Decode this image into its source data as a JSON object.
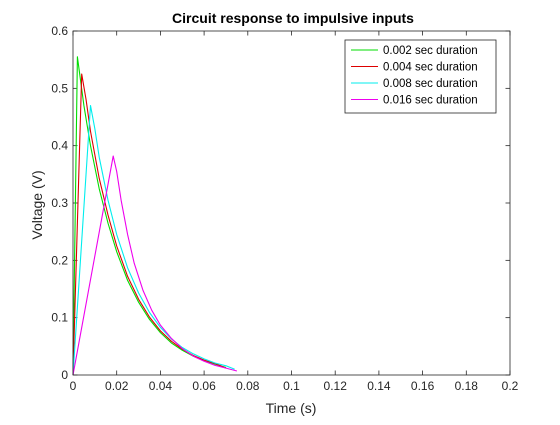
{
  "chart_data": {
    "type": "line",
    "title": "Circuit response to impulsive inputs",
    "xlabel": "Time (s)",
    "ylabel": "Voltage (V)",
    "xlim": [
      0,
      0.2
    ],
    "ylim": [
      0,
      0.6
    ],
    "xticks": [
      0,
      0.02,
      0.04,
      0.06,
      0.08,
      0.1,
      0.12,
      0.14,
      0.16,
      0.18,
      0.2
    ],
    "xtick_labels": [
      "0",
      "0.02",
      "0.04",
      "0.06",
      "0.08",
      "0.1",
      "0.12",
      "0.14",
      "0.16",
      "0.18",
      "0.2"
    ],
    "yticks": [
      0,
      0.1,
      0.2,
      0.3,
      0.4,
      0.5,
      0.6
    ],
    "ytick_labels": [
      "0",
      "0.1",
      "0.2",
      "0.3",
      "0.4",
      "0.5",
      "0.6"
    ],
    "grid": false,
    "legend_position": "top-right",
    "series": [
      {
        "name": "0.002 sec duration",
        "color": "#00dd00",
        "points": [
          [
            0,
            0
          ],
          [
            0.002,
            0.555
          ],
          [
            0.005,
            0.47
          ],
          [
            0.008,
            0.4
          ],
          [
            0.012,
            0.325
          ],
          [
            0.016,
            0.265
          ],
          [
            0.02,
            0.215
          ],
          [
            0.025,
            0.165
          ],
          [
            0.03,
            0.127
          ],
          [
            0.035,
            0.097
          ],
          [
            0.04,
            0.074
          ],
          [
            0.045,
            0.056
          ],
          [
            0.05,
            0.043
          ],
          [
            0.055,
            0.033
          ],
          [
            0.06,
            0.025
          ],
          [
            0.065,
            0.019
          ],
          [
            0.07,
            0.013
          ]
        ]
      },
      {
        "name": "0.004 sec duration",
        "color": "#dd0000",
        "points": [
          [
            0,
            0
          ],
          [
            0.004,
            0.525
          ],
          [
            0.006,
            0.48
          ],
          [
            0.008,
            0.425
          ],
          [
            0.012,
            0.343
          ],
          [
            0.016,
            0.279
          ],
          [
            0.02,
            0.225
          ],
          [
            0.025,
            0.172
          ],
          [
            0.03,
            0.132
          ],
          [
            0.035,
            0.101
          ],
          [
            0.04,
            0.077
          ],
          [
            0.045,
            0.059
          ],
          [
            0.05,
            0.045
          ],
          [
            0.055,
            0.034
          ],
          [
            0.06,
            0.026
          ],
          [
            0.065,
            0.02
          ],
          [
            0.07,
            0.012
          ]
        ]
      },
      {
        "name": "0.008 sec duration",
        "color": "#00eeee",
        "points": [
          [
            0,
            0
          ],
          [
            0.008,
            0.47
          ],
          [
            0.01,
            0.43
          ],
          [
            0.012,
            0.38
          ],
          [
            0.016,
            0.305
          ],
          [
            0.02,
            0.245
          ],
          [
            0.025,
            0.187
          ],
          [
            0.03,
            0.143
          ],
          [
            0.035,
            0.109
          ],
          [
            0.04,
            0.083
          ],
          [
            0.045,
            0.063
          ],
          [
            0.05,
            0.048
          ],
          [
            0.055,
            0.037
          ],
          [
            0.06,
            0.028
          ],
          [
            0.065,
            0.021
          ],
          [
            0.07,
            0.016
          ],
          [
            0.074,
            0.01
          ]
        ]
      },
      {
        "name": "0.016 sec duration",
        "color": "#ee00ee",
        "points": [
          [
            0,
            0
          ],
          [
            0.0184,
            0.382
          ],
          [
            0.02,
            0.355
          ],
          [
            0.022,
            0.305
          ],
          [
            0.025,
            0.245
          ],
          [
            0.028,
            0.195
          ],
          [
            0.032,
            0.148
          ],
          [
            0.036,
            0.113
          ],
          [
            0.04,
            0.087
          ],
          [
            0.045,
            0.064
          ],
          [
            0.05,
            0.046
          ],
          [
            0.055,
            0.033
          ],
          [
            0.06,
            0.024
          ],
          [
            0.065,
            0.017
          ],
          [
            0.07,
            0.012
          ],
          [
            0.075,
            0.007
          ]
        ]
      }
    ]
  }
}
